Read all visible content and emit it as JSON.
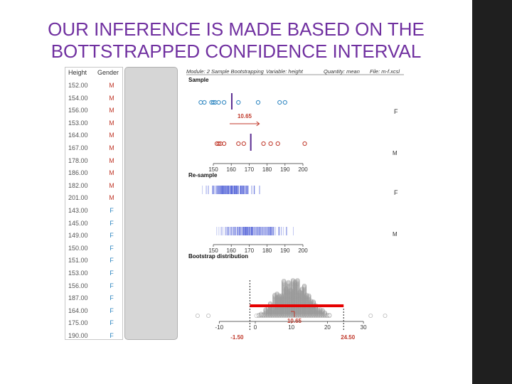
{
  "title": {
    "line1": "OUR INFERENCE IS MADE BASED ON THE",
    "line2": "BOTTSTRAPPED CONFIDENCE INTERVAL"
  },
  "colors": {
    "title": "#7030a0",
    "male": "#c0392b",
    "female": "#2e86c1",
    "sample_mean_line": "#5b2c91",
    "ci_bar": "#e60000",
    "bootstrap_dots": "#9a9a9a"
  },
  "table": {
    "header_height": "Height",
    "header_gender": "Gender",
    "rows": [
      {
        "height": "152.00",
        "gender": "M"
      },
      {
        "height": "154.00",
        "gender": "M"
      },
      {
        "height": "156.00",
        "gender": "M"
      },
      {
        "height": "153.00",
        "gender": "M"
      },
      {
        "height": "164.00",
        "gender": "M"
      },
      {
        "height": "167.00",
        "gender": "M"
      },
      {
        "height": "178.00",
        "gender": "M"
      },
      {
        "height": "186.00",
        "gender": "M"
      },
      {
        "height": "182.00",
        "gender": "M"
      },
      {
        "height": "201.00",
        "gender": "M"
      },
      {
        "height": "143.00",
        "gender": "F"
      },
      {
        "height": "145.00",
        "gender": "F"
      },
      {
        "height": "149.00",
        "gender": "F"
      },
      {
        "height": "150.00",
        "gender": "F"
      },
      {
        "height": "151.00",
        "gender": "F"
      },
      {
        "height": "153.00",
        "gender": "F"
      },
      {
        "height": "156.00",
        "gender": "F"
      },
      {
        "height": "187.00",
        "gender": "F"
      },
      {
        "height": "164.00",
        "gender": "F"
      },
      {
        "height": "175.00",
        "gender": "F"
      },
      {
        "height": "190.00",
        "gender": "F"
      }
    ]
  },
  "header": {
    "module": "Module: 2 Sample Bootstrapping",
    "variable": "Variable: height",
    "quantity": "Quantity: mean",
    "file": "File: m-f.xcsl"
  },
  "sample": {
    "label": "Sample",
    "female_label": "F",
    "male_label": "M",
    "female_points": [
      143,
      145,
      149,
      150,
      151,
      153,
      156,
      164,
      175,
      187,
      190
    ],
    "male_points": [
      152,
      153,
      154,
      156,
      164,
      167,
      178,
      182,
      186,
      201
    ],
    "female_mean": 160.3,
    "male_mean": 170.9,
    "difference_label": "10.65",
    "axis_ticks": [
      "150",
      "160",
      "170",
      "180",
      "190",
      "200"
    ]
  },
  "resample": {
    "label": "Re-sample",
    "female_label": "F",
    "male_label": "M",
    "axis_ticks": [
      "150",
      "160",
      "170",
      "180",
      "190",
      "200"
    ]
  },
  "bootstrap": {
    "label": "Bootstrap distribution",
    "axis_ticks": [
      "-10",
      "0",
      "10",
      "20",
      "30"
    ],
    "observed_diff": "10.65",
    "ci_lower": "-1.50",
    "ci_upper": "24.50"
  }
}
